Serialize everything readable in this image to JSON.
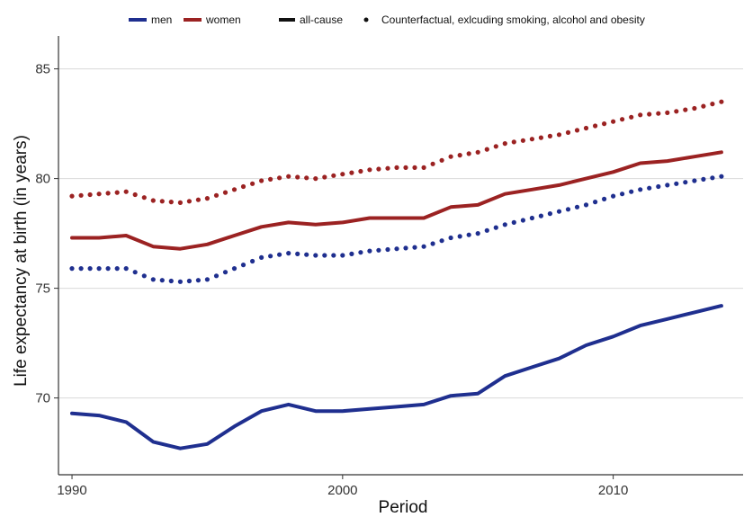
{
  "chart_data": {
    "type": "line",
    "xlabel": "Period",
    "ylabel": "Life expectancy at birth (in years)",
    "xlim": [
      1989.5,
      2014.8
    ],
    "ylim": [
      66.5,
      86.5
    ],
    "x_ticks": [
      1990,
      2000,
      2010
    ],
    "y_ticks": [
      70,
      75,
      80,
      85
    ],
    "grid": true,
    "legend_position": "top",
    "legend": {
      "sex": [
        {
          "label": "men",
          "color": "#1f2f8f"
        },
        {
          "label": "women",
          "color": "#9b2222"
        }
      ],
      "type": [
        {
          "label": "all-cause",
          "style": "solid"
        },
        {
          "label": "Counterfactual, exlcuding smoking, alcohol and obesity",
          "style": "dotted"
        }
      ]
    },
    "x": [
      1990,
      1991,
      1992,
      1993,
      1994,
      1995,
      1996,
      1997,
      1998,
      1999,
      2000,
      2001,
      2002,
      2003,
      2004,
      2005,
      2006,
      2007,
      2008,
      2009,
      2010,
      2011,
      2012,
      2013,
      2014
    ],
    "series": [
      {
        "name": "women",
        "cause": "all-cause",
        "color": "#9b2222",
        "style": "solid",
        "values": [
          77.3,
          77.3,
          77.4,
          76.9,
          76.8,
          77.0,
          77.4,
          77.8,
          78.0,
          77.9,
          78.0,
          78.2,
          78.2,
          78.2,
          78.7,
          78.8,
          79.3,
          79.5,
          79.7,
          80.0,
          80.3,
          80.7,
          80.8,
          81.0,
          81.2
        ]
      },
      {
        "name": "women",
        "cause": "counterfactual",
        "color": "#9b2222",
        "style": "dotted",
        "values": [
          79.2,
          79.3,
          79.4,
          79.0,
          78.9,
          79.1,
          79.5,
          79.9,
          80.1,
          80.0,
          80.2,
          80.4,
          80.5,
          80.5,
          81.0,
          81.2,
          81.6,
          81.8,
          82.0,
          82.3,
          82.6,
          82.9,
          83.0,
          83.2,
          83.5
        ]
      },
      {
        "name": "men",
        "cause": "counterfactual",
        "color": "#1f2f8f",
        "style": "dotted",
        "values": [
          75.9,
          75.9,
          75.9,
          75.4,
          75.3,
          75.4,
          75.9,
          76.4,
          76.6,
          76.5,
          76.5,
          76.7,
          76.8,
          76.9,
          77.3,
          77.5,
          77.9,
          78.2,
          78.5,
          78.8,
          79.2,
          79.5,
          79.7,
          79.9,
          80.1
        ]
      },
      {
        "name": "men",
        "cause": "all-cause",
        "color": "#1f2f8f",
        "style": "solid",
        "values": [
          69.3,
          69.2,
          68.9,
          68.0,
          67.7,
          67.9,
          68.7,
          69.4,
          69.7,
          69.4,
          69.4,
          69.5,
          69.6,
          69.7,
          70.1,
          70.2,
          71.0,
          71.4,
          71.8,
          72.4,
          72.8,
          73.3,
          73.6,
          73.9,
          74.2
        ]
      }
    ]
  }
}
